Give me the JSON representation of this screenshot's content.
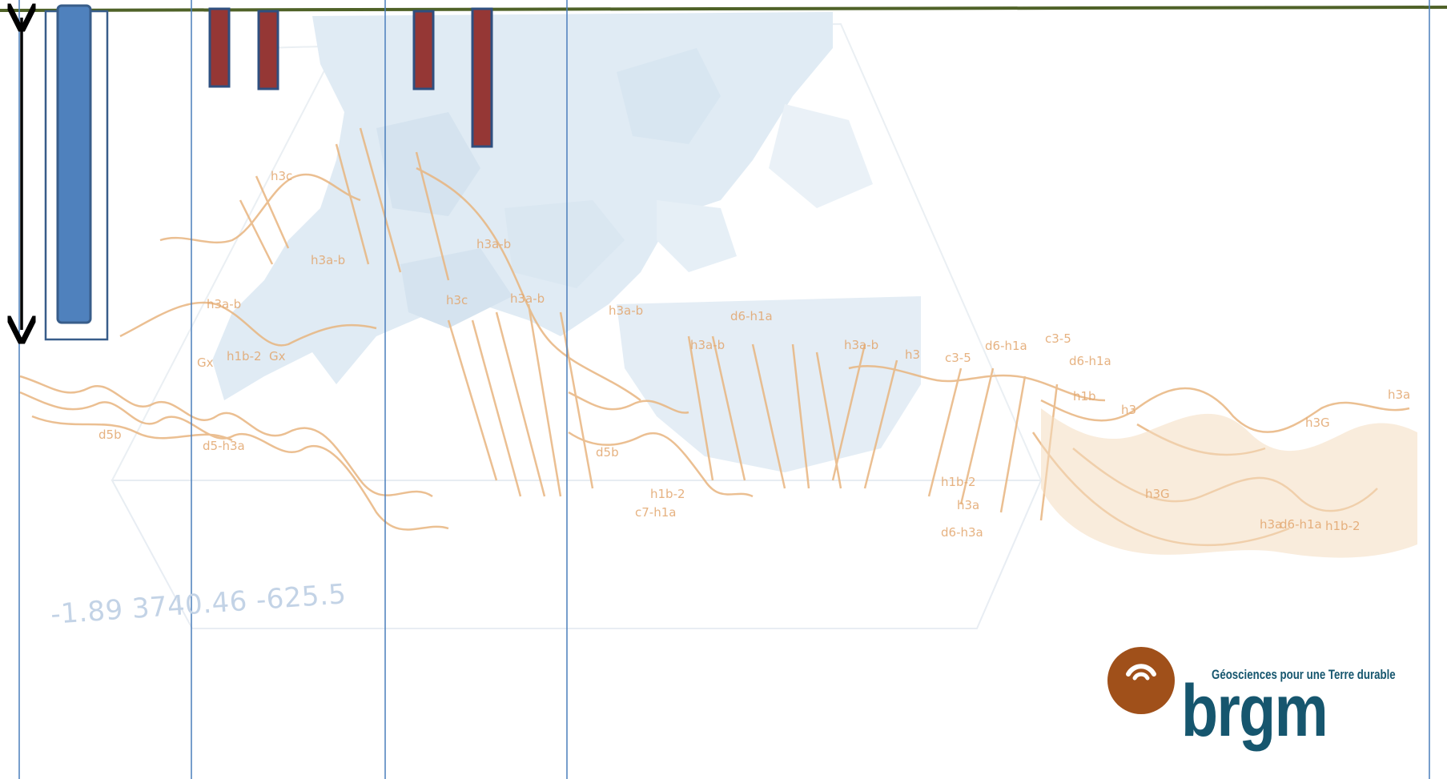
{
  "background": {
    "cross_section_labels": [
      "h3c",
      "h3a-b",
      "h3a-b",
      "h3a-b",
      "h3c",
      "h3a-b",
      "h3a-b",
      "Gx",
      "h1b-2",
      "Gx",
      "d5b",
      "d5-h3a",
      "d5b",
      "h1b-2",
      "c7-h1a",
      "d6-h1a",
      "h3a-b",
      "h3a-b",
      "h3",
      "c3-5",
      "d6-h1a",
      "c3-5",
      "d6-h1a",
      "h1b",
      "h3",
      "h3G",
      "h3G",
      "h3a",
      "d6-h1a",
      "h1b-2",
      "h1b-2",
      "h3a",
      "d6-h3a",
      "h3a"
    ],
    "coordinate_text": "-1.89 3740.46 -625.5"
  },
  "logo": {
    "tagline": "Géosciences pour une Terre durable",
    "wordmark": "brgm"
  },
  "colors": {
    "frame_line": "#4a7ebb",
    "top_line": "#4f6228",
    "blue_bar": "#4f81bd",
    "blue_bar_edge": "#385d8a",
    "red_bar": "#953735",
    "red_bar_edge": "#2f4f7f",
    "arrow": "#000000",
    "orange_sketch": "#e8b57f",
    "blue_wash": "#c7dcec",
    "logo_brown": "#a0501a",
    "logo_text": "#16566e"
  },
  "icons": [
    "double-headed-arrow-icon",
    "brgm-logo-icon"
  ]
}
